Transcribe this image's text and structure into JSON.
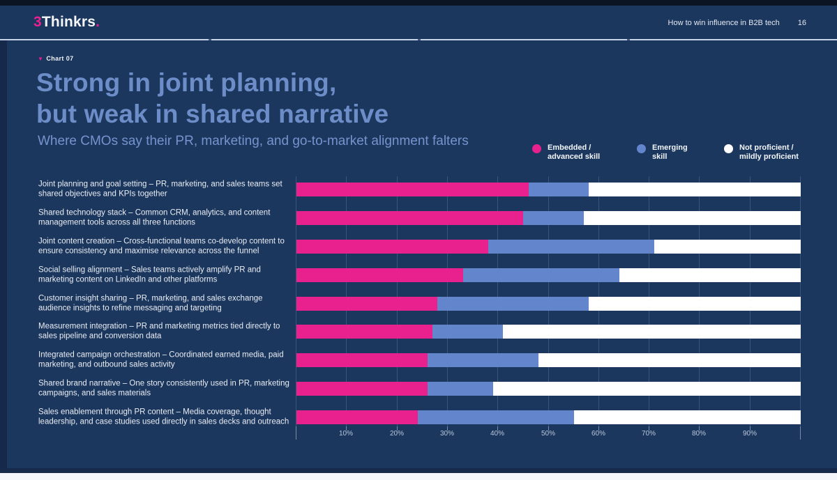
{
  "header": {
    "logo_prefix": "3",
    "logo_name": "Thinkrs",
    "logo_suffix": ".",
    "doc_title": "How to win influence in B2B tech",
    "page_number": "16"
  },
  "chart_tag": "Chart 07",
  "title_line1": "Strong in joint planning,",
  "title_line2": "but weak in shared narrative",
  "subtitle": "Where CMOs say their PR, marketing, and go-to-market alignment falters",
  "legend": {
    "items": [
      {
        "line1": "Embedded /",
        "line2": "advanced skill"
      },
      {
        "line1": "Emerging",
        "line2": "skill"
      },
      {
        "line1": "Not proficient /",
        "line2": "mildly proficient"
      }
    ]
  },
  "colors": {
    "background": "#1C375E",
    "accent_pink": "#E8218F",
    "bar_blue": "#6285CB",
    "bar_white": "#FFFFFF",
    "title_blue": "#6D8DC9"
  },
  "chart_data": {
    "type": "bar",
    "orientation": "horizontal",
    "stacked": true,
    "grid": true,
    "legend_position": "top-right",
    "xlim": [
      0,
      100
    ],
    "x_ticks": [
      "10%",
      "20%",
      "30%",
      "40%",
      "50%",
      "60%",
      "70%",
      "80%",
      "90%"
    ],
    "categories": [
      "Joint planning and goal setting – PR, marketing, and sales teams set shared objectives and KPIs together",
      "Shared technology stack – Common CRM, analytics, and content management tools across all three functions",
      "Joint content creation – Cross-functional teams co-develop content to ensure consistency and maximise relevance across the funnel",
      "Social selling alignment – Sales teams actively amplify PR and marketing content on LinkedIn and other platforms",
      "Customer insight sharing – PR, marketing, and sales exchange audience insights to refine messaging and targeting",
      "Measurement integration – PR and marketing metrics tied directly to sales pipeline and conversion data",
      "Integrated campaign orchestration – Coordinated earned media, paid marketing, and outbound sales activity",
      "Shared brand narrative – One story consistently used in PR, marketing campaigns, and sales materials",
      "Sales enablement through PR content – Media coverage, thought leadership, and case studies used directly in sales decks and outreach"
    ],
    "series": [
      {
        "name": "Embedded / advanced skill",
        "color": "#E8218F",
        "values": [
          46,
          45,
          38,
          33,
          28,
          27,
          26,
          26,
          24
        ]
      },
      {
        "name": "Emerging skill",
        "color": "#6285CB",
        "values": [
          12,
          12,
          33,
          31,
          30,
          14,
          22,
          13,
          31
        ]
      },
      {
        "name": "Not proficient / mildly proficient",
        "color": "#FFFFFF",
        "values": [
          42,
          43,
          29,
          36,
          42,
          59,
          52,
          61,
          45
        ]
      }
    ]
  }
}
